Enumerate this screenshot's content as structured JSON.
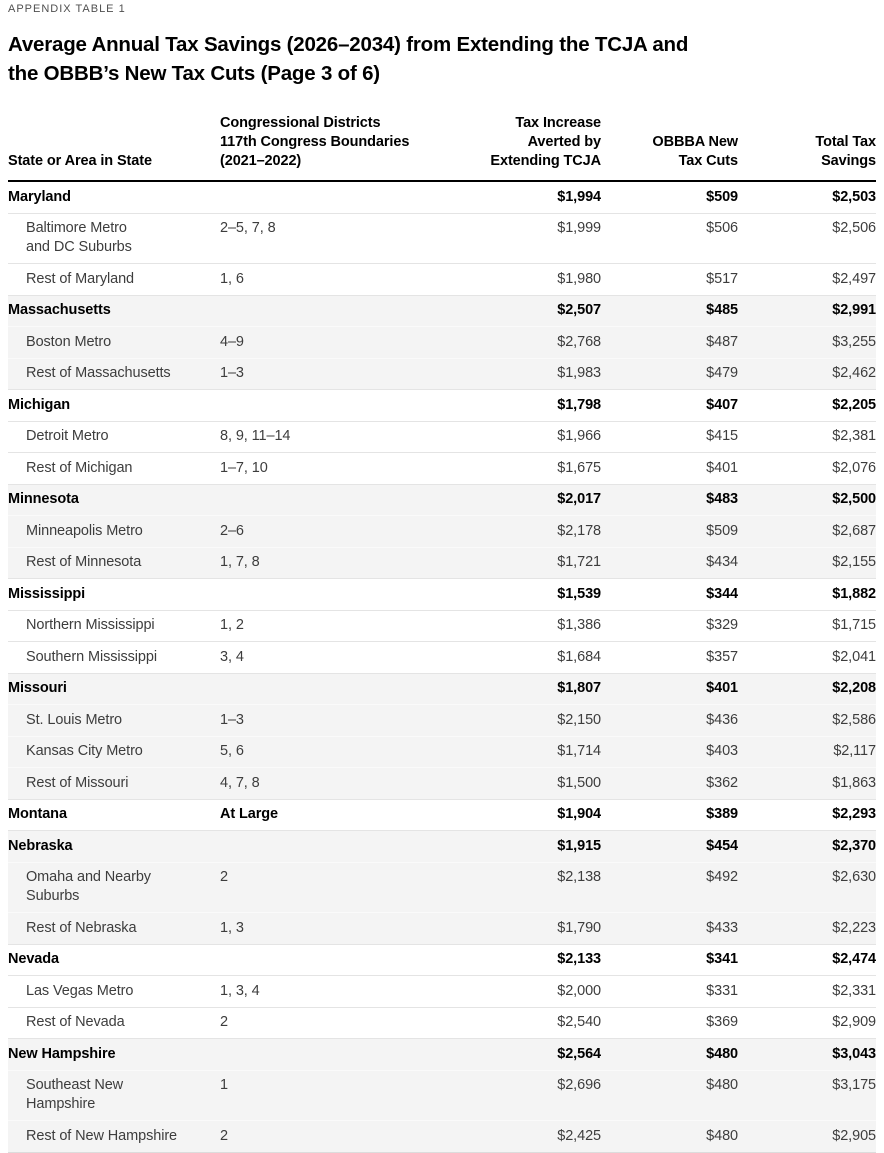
{
  "eyebrow": "APPENDIX TABLE 1",
  "title_lines": [
    "Average Annual Tax Savings (2026–2034) from Extending the TCJA and",
    "the OBBB’s New Tax Cuts (Page 3 of 6)"
  ],
  "colors": {
    "group_shade": "#f4f4f4",
    "header_rule": "#000000",
    "row_divider": "#e4e4e4",
    "row_divider_on_shade": "#fafafa",
    "state_text": "#000000",
    "subrow_text": "#3d3d3d",
    "eyebrow_text": "#4f4f4f"
  },
  "table": {
    "columns": [
      {
        "key": "area",
        "align": "left",
        "lines": [
          "State or Area in State"
        ]
      },
      {
        "key": "districts",
        "align": "left",
        "lines": [
          "Congressional Districts",
          "117th Congress Boundaries",
          "(2021–2022)"
        ]
      },
      {
        "key": "tcja",
        "align": "right",
        "lines": [
          "Tax Increase",
          "Averted by",
          "Extending TCJA"
        ]
      },
      {
        "key": "obbba",
        "align": "right",
        "lines": [
          "OBBBA New",
          "Tax Cuts"
        ]
      },
      {
        "key": "total",
        "align": "right",
        "lines": [
          "Total Tax",
          "Savings"
        ]
      }
    ],
    "rows": [
      {
        "type": "state",
        "shade": "white",
        "area": "Maryland",
        "districts": "",
        "tcja": "$1,994",
        "obbba": "$509",
        "total": "$2,503"
      },
      {
        "type": "sub",
        "shade": "white",
        "area": "Baltimore Metro\nand DC Suburbs",
        "districts": "2–5, 7, 8",
        "tcja": "$1,999",
        "obbba": "$506",
        "total": "$2,506"
      },
      {
        "type": "sub",
        "shade": "white",
        "area": "Rest of Maryland",
        "districts": "1, 6",
        "tcja": "$1,980",
        "obbba": "$517",
        "total": "$2,497"
      },
      {
        "type": "state",
        "shade": "gray",
        "area": "Massachusetts",
        "districts": "",
        "tcja": "$2,507",
        "obbba": "$485",
        "total": "$2,991"
      },
      {
        "type": "sub",
        "shade": "gray",
        "area": "Boston Metro",
        "districts": "4–9",
        "tcja": "$2,768",
        "obbba": "$487",
        "total": "$3,255"
      },
      {
        "type": "sub",
        "shade": "gray",
        "area": "Rest of Massachusetts",
        "districts": "1–3",
        "tcja": "$1,983",
        "obbba": "$479",
        "total": "$2,462"
      },
      {
        "type": "state",
        "shade": "white",
        "area": "Michigan",
        "districts": "",
        "tcja": "$1,798",
        "obbba": "$407",
        "total": "$2,205"
      },
      {
        "type": "sub",
        "shade": "white",
        "area": "Detroit Metro",
        "districts": "8, 9, 11–14",
        "tcja": "$1,966",
        "obbba": "$415",
        "total": "$2,381"
      },
      {
        "type": "sub",
        "shade": "white",
        "area": "Rest of Michigan",
        "districts": "1–7, 10",
        "tcja": "$1,675",
        "obbba": "$401",
        "total": "$2,076"
      },
      {
        "type": "state",
        "shade": "gray",
        "area": "Minnesota",
        "districts": "",
        "tcja": "$2,017",
        "obbba": "$483",
        "total": "$2,500"
      },
      {
        "type": "sub",
        "shade": "gray",
        "area": "Minneapolis Metro",
        "districts": "2–6",
        "tcja": "$2,178",
        "obbba": "$509",
        "total": "$2,687"
      },
      {
        "type": "sub",
        "shade": "gray",
        "area": "Rest of Minnesota",
        "districts": "1, 7, 8",
        "tcja": "$1,721",
        "obbba": "$434",
        "total": "$2,155"
      },
      {
        "type": "state",
        "shade": "white",
        "area": "Mississippi",
        "districts": "",
        "tcja": "$1,539",
        "obbba": "$344",
        "total": "$1,882"
      },
      {
        "type": "sub",
        "shade": "white",
        "area": "Northern Mississippi",
        "districts": "1, 2",
        "tcja": "$1,386",
        "obbba": "$329",
        "total": "$1,715"
      },
      {
        "type": "sub",
        "shade": "white",
        "area": "Southern Mississippi",
        "districts": "3, 4",
        "tcja": "$1,684",
        "obbba": "$357",
        "total": "$2,041"
      },
      {
        "type": "state",
        "shade": "gray",
        "area": "Missouri",
        "districts": "",
        "tcja": "$1,807",
        "obbba": "$401",
        "total": "$2,208"
      },
      {
        "type": "sub",
        "shade": "gray",
        "area": "St. Louis Metro",
        "districts": "1–3",
        "tcja": "$2,150",
        "obbba": "$436",
        "total": "$2,586"
      },
      {
        "type": "sub",
        "shade": "gray",
        "area": "Kansas City Metro",
        "districts": "5, 6",
        "tcja": "$1,714",
        "obbba": "$403",
        "total": "$2,117"
      },
      {
        "type": "sub",
        "shade": "gray",
        "area": "Rest of Missouri",
        "districts": "4, 7, 8",
        "tcja": "$1,500",
        "obbba": "$362",
        "total": "$1,863"
      },
      {
        "type": "state",
        "shade": "white",
        "area": "Montana",
        "districts": "At Large",
        "tcja": "$1,904",
        "obbba": "$389",
        "total": "$2,293"
      },
      {
        "type": "state",
        "shade": "gray",
        "area": "Nebraska",
        "districts": "",
        "tcja": "$1,915",
        "obbba": "$454",
        "total": "$2,370"
      },
      {
        "type": "sub",
        "shade": "gray",
        "area": "Omaha and Nearby\nSuburbs",
        "districts": "2",
        "tcja": "$2,138",
        "obbba": "$492",
        "total": "$2,630"
      },
      {
        "type": "sub",
        "shade": "gray",
        "area": "Rest of Nebraska",
        "districts": "1, 3",
        "tcja": "$1,790",
        "obbba": "$433",
        "total": "$2,223"
      },
      {
        "type": "state",
        "shade": "white",
        "area": "Nevada",
        "districts": "",
        "tcja": "$2,133",
        "obbba": "$341",
        "total": "$2,474"
      },
      {
        "type": "sub",
        "shade": "white",
        "area": "Las Vegas Metro",
        "districts": "1, 3, 4",
        "tcja": "$2,000",
        "obbba": "$331",
        "total": "$2,331"
      },
      {
        "type": "sub",
        "shade": "white",
        "area": "Rest of Nevada",
        "districts": "2",
        "tcja": "$2,540",
        "obbba": "$369",
        "total": "$2,909"
      },
      {
        "type": "state",
        "shade": "gray",
        "area": "New Hampshire",
        "districts": "",
        "tcja": "$2,564",
        "obbba": "$480",
        "total": "$3,043"
      },
      {
        "type": "sub",
        "shade": "gray",
        "area": "Southeast New\nHampshire",
        "districts": "1",
        "tcja": "$2,696",
        "obbba": "$480",
        "total": "$3,175"
      },
      {
        "type": "sub",
        "shade": "gray",
        "area": "Rest of New Hampshire",
        "districts": "2",
        "tcja": "$2,425",
        "obbba": "$480",
        "total": "$2,905"
      }
    ]
  }
}
